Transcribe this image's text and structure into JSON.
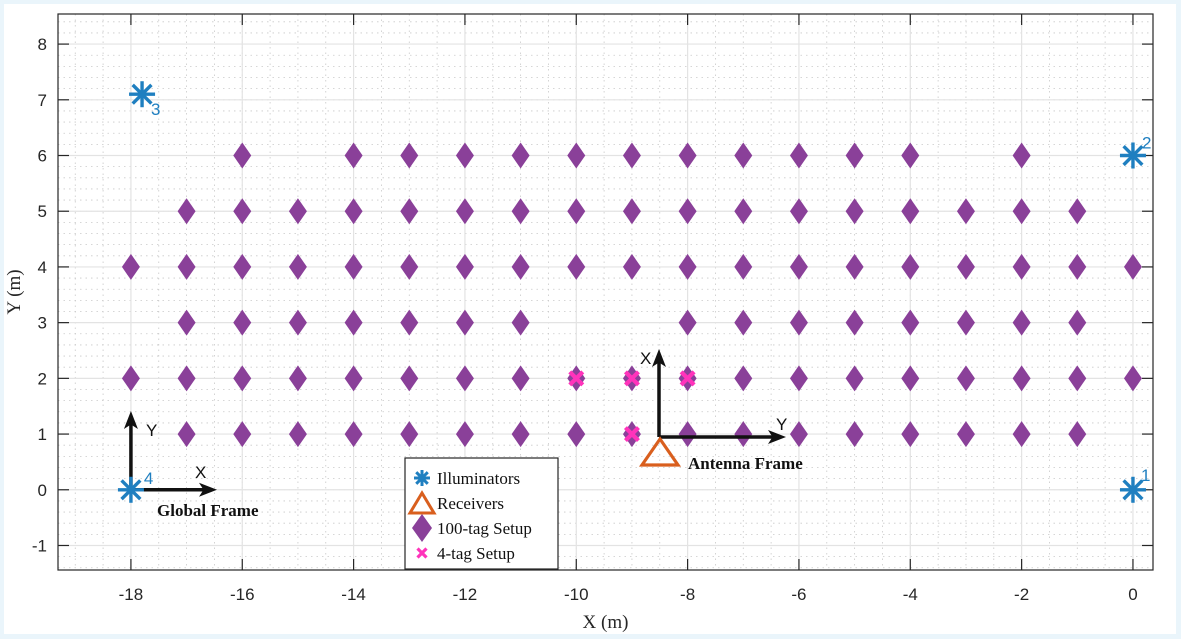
{
  "chart_data": {
    "type": "scatter",
    "title": "",
    "xlabel": "X (m)",
    "ylabel": "Y (m)",
    "xlim": [
      -19.31,
      0.36
    ],
    "ylim": [
      -1.44,
      8.54
    ],
    "xticks": [
      -18,
      -16,
      -14,
      -12,
      -10,
      -8,
      -6,
      -4,
      -2,
      0
    ],
    "yticks": [
      -1,
      0,
      1,
      2,
      3,
      4,
      5,
      6,
      7,
      8
    ],
    "grid": {
      "major": true,
      "minor": true
    },
    "legend_position": "inside-bottom-center",
    "series": [
      {
        "name": "Illuminators",
        "marker": "asterisk",
        "color": "#1f7fc0",
        "points": [
          {
            "x": 0,
            "y": 0,
            "label": "1"
          },
          {
            "x": 0,
            "y": 6,
            "label": "2"
          },
          {
            "x": -17.8,
            "y": 7.1,
            "label": "3"
          },
          {
            "x": -18,
            "y": 0,
            "label": "4"
          }
        ]
      },
      {
        "name": "Receivers",
        "marker": "triangle-open",
        "color": "#d95f1e",
        "points": [
          {
            "x": -8.5,
            "y": 0.75
          }
        ]
      },
      {
        "name": "100-tag Setup",
        "marker": "diamond",
        "color": "#8a4099",
        "rows": [
          {
            "y": 6,
            "x": [
              -16,
              -14,
              -13,
              -12,
              -11,
              -10,
              -9,
              -8,
              -7,
              -6,
              -5,
              -4,
              -2
            ]
          },
          {
            "y": 5,
            "x": [
              -17,
              -16,
              -15,
              -14,
              -13,
              -12,
              -11,
              -10,
              -9,
              -8,
              -7,
              -6,
              -5,
              -4,
              -3,
              -2,
              -1
            ]
          },
          {
            "y": 4,
            "x": [
              -18,
              -17,
              -16,
              -15,
              -14,
              -13,
              -12,
              -11,
              -10,
              -9,
              -8,
              -7,
              -6,
              -5,
              -4,
              -3,
              -2,
              -1,
              0
            ]
          },
          {
            "y": 3,
            "x": [
              -17,
              -16,
              -15,
              -14,
              -13,
              -12,
              -11,
              -8,
              -7,
              -6,
              -5,
              -4,
              -3,
              -2,
              -1
            ]
          },
          {
            "y": 2,
            "x": [
              -18,
              -17,
              -16,
              -15,
              -14,
              -13,
              -12,
              -11,
              -10,
              -9,
              -8,
              -7,
              -6,
              -5,
              -4,
              -3,
              -2,
              -1,
              0
            ]
          },
          {
            "y": 1,
            "x": [
              -17,
              -16,
              -15,
              -14,
              -13,
              -12,
              -11,
              -10,
              -9,
              -8,
              -7,
              -6,
              -5,
              -4,
              -3,
              -2,
              -1
            ]
          }
        ]
      },
      {
        "name": "4-tag Setup",
        "marker": "x-thick",
        "color": "#ff33bb",
        "points": [
          {
            "x": -10,
            "y": 2
          },
          {
            "x": -9,
            "y": 2
          },
          {
            "x": -8,
            "y": 2
          },
          {
            "x": -9,
            "y": 1
          }
        ]
      }
    ],
    "annotations": [
      {
        "text": "Global Frame",
        "origin": {
          "x": -18,
          "y": 0
        },
        "axes": {
          "x_dir": "right",
          "y_dir": "up"
        },
        "x_label": "X",
        "y_label": "Y"
      },
      {
        "text": "Antenna Frame",
        "origin": {
          "x": -8.5,
          "y": 1
        },
        "axes": {
          "x_dir": "up",
          "y_dir": "right"
        },
        "x_label": "X",
        "y_label": "Y"
      }
    ]
  },
  "legend": {
    "items": [
      {
        "label": "Illuminators",
        "icon": "asterisk-icon"
      },
      {
        "label": "Receivers",
        "icon": "triangle-icon"
      },
      {
        "label": "100-tag Setup",
        "icon": "diamond-icon"
      },
      {
        "label": "4-tag Setup",
        "icon": "x-icon"
      }
    ]
  },
  "colors": {
    "illuminator": "#1f7fc0",
    "receiver": "#d95f1e",
    "tag100": "#8a4099",
    "tag4": "#ff33bb",
    "axis": "#262626",
    "frame_arrow": "#111111"
  }
}
